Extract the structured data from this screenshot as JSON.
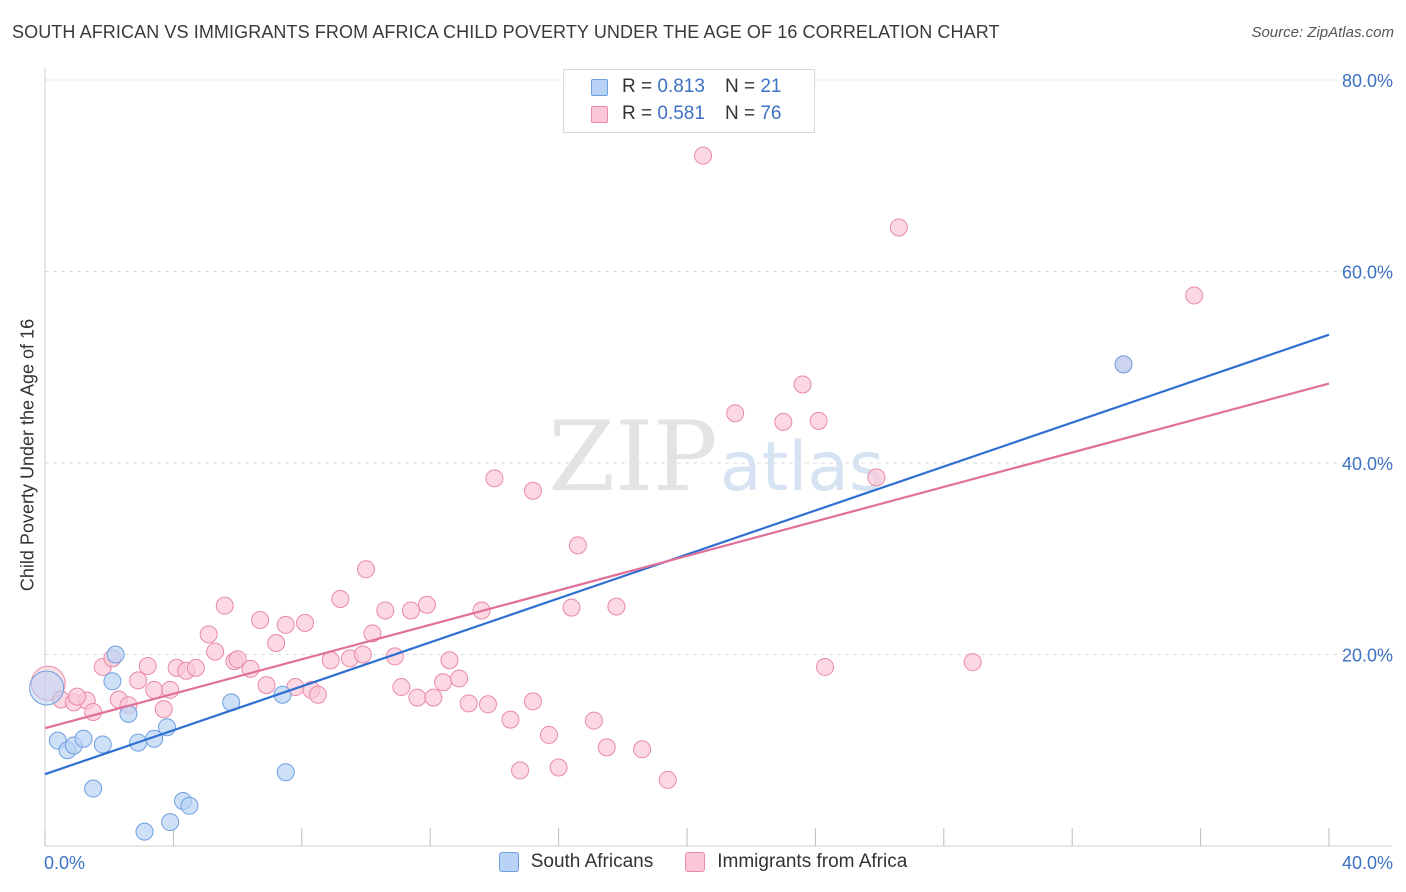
{
  "header": {
    "title": "SOUTH AFRICAN VS IMMIGRANTS FROM AFRICA CHILD POVERTY UNDER THE AGE OF 16 CORRELATION CHART",
    "source": "Source: ZipAtlas.com"
  },
  "watermark": {
    "zip": "ZIP",
    "atlas": "atlas"
  },
  "legend": {
    "series": [
      {
        "r_label": "R =",
        "r_value": "0.813",
        "n_label": "N =",
        "n_value": "21"
      },
      {
        "r_label": "R =",
        "r_value": "0.581",
        "n_label": "N =",
        "n_value": "76"
      }
    ]
  },
  "bottom_legend": {
    "south_africans": "South Africans",
    "immigrants": "Immigrants from Africa"
  },
  "colors": {
    "blue_fill": "#b8d3f5",
    "blue_stroke": "#6f9fe0",
    "blue_line": "#2e6fd1",
    "pink_fill": "#f9c7d6",
    "pink_stroke": "#e98aa8",
    "pink_line": "#e0709a",
    "axis_text": "#3d72c4",
    "grid": "#dcdcdc"
  },
  "chart_data": {
    "type": "scatter",
    "title": "SOUTH AFRICAN VS IMMIGRANTS FROM AFRICA CHILD POVERTY UNDER THE AGE OF 16 CORRELATION CHART",
    "xlabel": "",
    "ylabel": "Child Poverty Under the Age of 16",
    "xlim": [
      0,
      40
    ],
    "ylim": [
      0,
      80
    ],
    "x_tick_labels": [
      "0.0%",
      "40.0%"
    ],
    "y_ticks": [
      20,
      40,
      60,
      80
    ],
    "y_tick_labels": [
      "20.0%",
      "40.0%",
      "60.0%",
      "80.0%"
    ],
    "series": [
      {
        "name": "South Africans",
        "r": 0.813,
        "n": 21,
        "trend": {
          "x": [
            0,
            40
          ],
          "y": [
            7.5,
            53.4
          ]
        },
        "points": [
          {
            "x": 0.05,
            "y": 16.5,
            "big": true
          },
          {
            "x": 0.4,
            "y": 11.0
          },
          {
            "x": 0.7,
            "y": 10.0
          },
          {
            "x": 0.9,
            "y": 10.5
          },
          {
            "x": 1.2,
            "y": 11.2
          },
          {
            "x": 1.5,
            "y": 6.0
          },
          {
            "x": 1.8,
            "y": 10.6
          },
          {
            "x": 2.1,
            "y": 17.2
          },
          {
            "x": 2.2,
            "y": 20.0
          },
          {
            "x": 2.6,
            "y": 13.8
          },
          {
            "x": 2.9,
            "y": 10.8
          },
          {
            "x": 3.1,
            "y": 1.5
          },
          {
            "x": 3.4,
            "y": 11.2
          },
          {
            "x": 3.8,
            "y": 12.4
          },
          {
            "x": 3.9,
            "y": 2.5
          },
          {
            "x": 4.3,
            "y": 4.7
          },
          {
            "x": 4.5,
            "y": 4.2
          },
          {
            "x": 5.8,
            "y": 15.0
          },
          {
            "x": 7.4,
            "y": 15.8
          },
          {
            "x": 7.5,
            "y": 7.7
          },
          {
            "x": 33.6,
            "y": 50.3
          }
        ]
      },
      {
        "name": "Immigrants from Africa",
        "r": 0.581,
        "n": 76,
        "trend": {
          "x": [
            0,
            40
          ],
          "y": [
            12.3,
            48.3
          ]
        },
        "points": [
          {
            "x": 0.1,
            "y": 17.0,
            "big": true
          },
          {
            "x": 0.5,
            "y": 15.3
          },
          {
            "x": 0.9,
            "y": 15.0
          },
          {
            "x": 1.3,
            "y": 15.2
          },
          {
            "x": 1.5,
            "y": 14.0
          },
          {
            "x": 1.8,
            "y": 18.7
          },
          {
            "x": 2.1,
            "y": 19.6
          },
          {
            "x": 2.3,
            "y": 15.3
          },
          {
            "x": 2.6,
            "y": 14.7
          },
          {
            "x": 2.9,
            "y": 17.3
          },
          {
            "x": 3.2,
            "y": 18.8
          },
          {
            "x": 3.4,
            "y": 16.3
          },
          {
            "x": 3.7,
            "y": 14.3
          },
          {
            "x": 3.9,
            "y": 16.3
          },
          {
            "x": 4.1,
            "y": 18.6
          },
          {
            "x": 4.4,
            "y": 18.3
          },
          {
            "x": 4.7,
            "y": 18.6
          },
          {
            "x": 5.1,
            "y": 22.1
          },
          {
            "x": 5.3,
            "y": 20.3
          },
          {
            "x": 5.6,
            "y": 25.1
          },
          {
            "x": 5.9,
            "y": 19.3
          },
          {
            "x": 6.0,
            "y": 19.5
          },
          {
            "x": 6.4,
            "y": 18.5
          },
          {
            "x": 6.7,
            "y": 23.6
          },
          {
            "x": 6.9,
            "y": 16.8
          },
          {
            "x": 7.2,
            "y": 21.2
          },
          {
            "x": 7.5,
            "y": 23.1
          },
          {
            "x": 7.8,
            "y": 16.6
          },
          {
            "x": 8.1,
            "y": 23.3
          },
          {
            "x": 8.3,
            "y": 16.3
          },
          {
            "x": 8.5,
            "y": 15.8
          },
          {
            "x": 8.9,
            "y": 19.4
          },
          {
            "x": 9.2,
            "y": 25.8
          },
          {
            "x": 9.5,
            "y": 19.6
          },
          {
            "x": 9.9,
            "y": 20.0
          },
          {
            "x": 10.0,
            "y": 28.9
          },
          {
            "x": 10.2,
            "y": 22.2
          },
          {
            "x": 10.6,
            "y": 24.6
          },
          {
            "x": 10.9,
            "y": 19.8
          },
          {
            "x": 11.1,
            "y": 16.6
          },
          {
            "x": 11.4,
            "y": 24.6
          },
          {
            "x": 11.6,
            "y": 15.5
          },
          {
            "x": 11.9,
            "y": 25.2
          },
          {
            "x": 12.1,
            "y": 15.5
          },
          {
            "x": 12.4,
            "y": 17.1
          },
          {
            "x": 12.6,
            "y": 19.4
          },
          {
            "x": 12.9,
            "y": 17.5
          },
          {
            "x": 13.2,
            "y": 14.9
          },
          {
            "x": 13.6,
            "y": 24.6
          },
          {
            "x": 13.8,
            "y": 14.8
          },
          {
            "x": 14.0,
            "y": 38.4
          },
          {
            "x": 14.5,
            "y": 13.2
          },
          {
            "x": 14.8,
            "y": 7.9
          },
          {
            "x": 15.2,
            "y": 15.1
          },
          {
            "x": 15.2,
            "y": 37.1
          },
          {
            "x": 15.7,
            "y": 11.6
          },
          {
            "x": 16.0,
            "y": 8.2
          },
          {
            "x": 16.4,
            "y": 24.9
          },
          {
            "x": 16.6,
            "y": 31.4
          },
          {
            "x": 17.1,
            "y": 13.1
          },
          {
            "x": 17.5,
            "y": 10.3
          },
          {
            "x": 17.8,
            "y": 25.0
          },
          {
            "x": 18.6,
            "y": 10.1
          },
          {
            "x": 19.4,
            "y": 6.9
          },
          {
            "x": 20.5,
            "y": 72.1
          },
          {
            "x": 21.5,
            "y": 45.2
          },
          {
            "x": 23.0,
            "y": 44.3
          },
          {
            "x": 23.6,
            "y": 48.2
          },
          {
            "x": 24.1,
            "y": 44.4
          },
          {
            "x": 24.3,
            "y": 18.7
          },
          {
            "x": 25.9,
            "y": 38.5
          },
          {
            "x": 26.6,
            "y": 64.6
          },
          {
            "x": 28.9,
            "y": 19.2
          },
          {
            "x": 33.6,
            "y": 50.3
          },
          {
            "x": 35.8,
            "y": 57.5
          },
          {
            "x": 1.0,
            "y": 15.6
          }
        ]
      }
    ]
  }
}
